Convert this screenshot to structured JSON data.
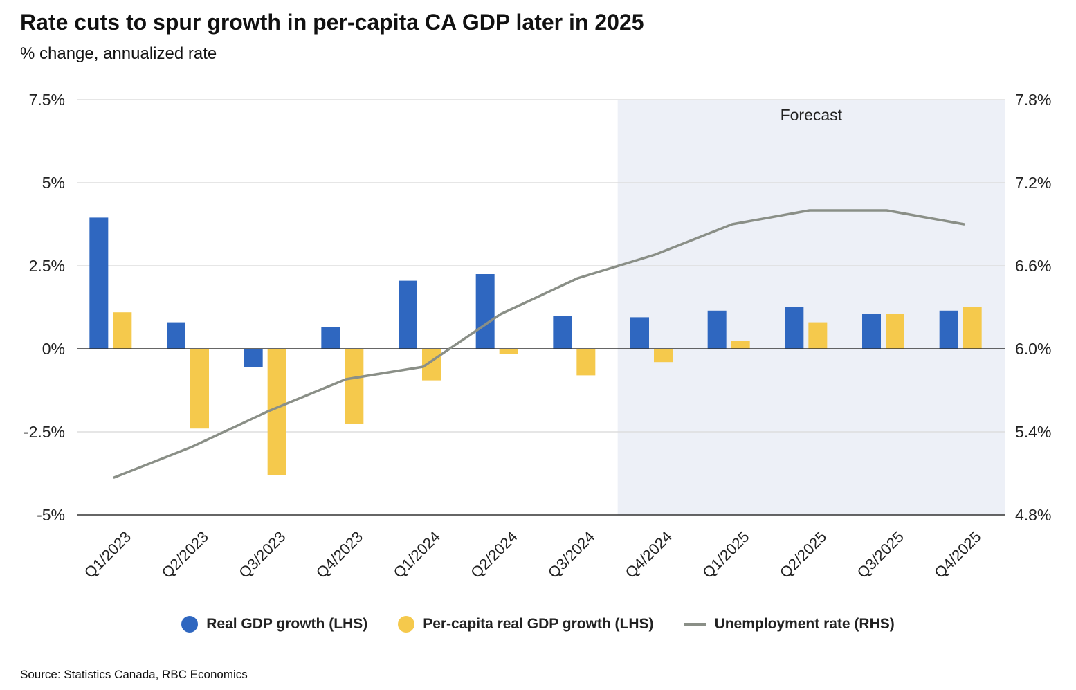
{
  "title": "Rate cuts to spur growth in per-capita CA GDP later in 2025",
  "subtitle": "% change, annualized rate",
  "source": "Source: Statistics Canada, RBC Economics",
  "colors": {
    "blue": "#2f67c0",
    "yellow": "#f5c94c",
    "line": "#8a8f87",
    "forecast_bg": "#edf0f7",
    "grid": "#dddddd",
    "axis": "#333333"
  },
  "chart_data": {
    "type": "bar",
    "categories": [
      "Q1/2023",
      "Q2/2023",
      "Q3/2023",
      "Q4/2023",
      "Q1/2024",
      "Q2/2024",
      "Q3/2024",
      "Q4/2024",
      "Q1/2025",
      "Q2/2025",
      "Q3/2025",
      "Q4/2025"
    ],
    "series": [
      {
        "name": "Real GDP growth (LHS)",
        "type": "bar",
        "axis": "left",
        "color": "#2f67c0",
        "values": [
          3.95,
          0.8,
          -0.55,
          0.65,
          2.05,
          2.25,
          1.0,
          0.95,
          1.15,
          1.25,
          1.05,
          1.15
        ]
      },
      {
        "name": "Per-capita real GDP growth (LHS)",
        "type": "bar",
        "axis": "left",
        "color": "#f5c94c",
        "values": [
          1.1,
          -2.4,
          -3.8,
          -2.25,
          -0.95,
          -0.15,
          -0.8,
          -0.4,
          0.25,
          0.8,
          1.05,
          1.25
        ]
      },
      {
        "name": "Unemployment rate (RHS)",
        "type": "line",
        "axis": "right",
        "color": "#8a8f87",
        "values": [
          5.07,
          5.29,
          5.55,
          5.78,
          5.87,
          6.25,
          6.51,
          6.68,
          6.9,
          7.0,
          7.0,
          6.9
        ]
      }
    ],
    "y_left": {
      "ylim": [
        -5,
        7.5
      ],
      "ticks": [
        7.5,
        5,
        2.5,
        0,
        -2.5,
        -5
      ],
      "tick_labels": [
        "7.5%",
        "5%",
        "2.5%",
        "0%",
        "-2.5%",
        "-5%"
      ]
    },
    "y_right": {
      "ylim": [
        4.8,
        7.8
      ],
      "ticks": [
        7.8,
        7.2,
        6.6,
        6.0,
        5.4,
        4.8
      ],
      "tick_labels": [
        "7.8%",
        "7.2%",
        "6.6%",
        "6.0%",
        "5.4%",
        "4.8%"
      ]
    },
    "forecast": {
      "label": "Forecast",
      "start_category": "Q4/2024"
    },
    "grid": true,
    "legend_placement": "bottom"
  }
}
